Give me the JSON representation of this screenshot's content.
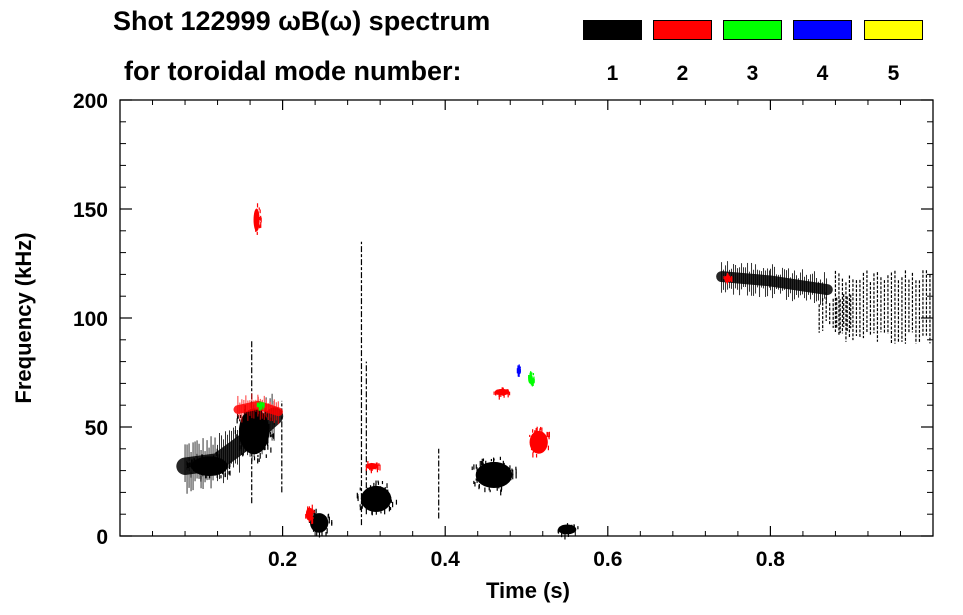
{
  "chart_data": {
    "type": "spectrogram",
    "title": "Shot 122999 ωB(ω) spectrum",
    "subtitle": "for toroidal mode number:",
    "xlabel": "Time (s)",
    "ylabel": "Frequency (kHz)",
    "xlim": [
      0.0,
      1.0
    ],
    "ylim": [
      0,
      200
    ],
    "x_ticks": [
      0.2,
      0.4,
      0.6,
      0.8
    ],
    "x_tick_labels": [
      "0.2",
      "0.4",
      "0.6",
      "0.8"
    ],
    "y_ticks": [
      0,
      50,
      100,
      150,
      200
    ],
    "y_tick_labels": [
      "0",
      "50",
      "100",
      "150",
      "200"
    ],
    "legend": [
      {
        "mode": "1",
        "color": "#000000"
      },
      {
        "mode": "2",
        "color": "#ff0000"
      },
      {
        "mode": "3",
        "color": "#00ff00"
      },
      {
        "mode": "4",
        "color": "#0000ff"
      },
      {
        "mode": "5",
        "color": "#ffff00"
      }
    ],
    "features": [
      {
        "mode": "1",
        "kind": "band",
        "t": [
          0.08,
          0.12,
          0.16,
          0.19
        ],
        "f": [
          32,
          34,
          45,
          55
        ],
        "width": 8
      },
      {
        "mode": "1",
        "kind": "blob",
        "t": 0.11,
        "f": 32,
        "rt": 0.03,
        "rf": 6
      },
      {
        "mode": "1",
        "kind": "blob",
        "t": 0.165,
        "f": 48,
        "rt": 0.025,
        "rf": 14
      },
      {
        "mode": "1",
        "kind": "blob",
        "t": 0.245,
        "f": 6,
        "rt": 0.015,
        "rf": 6
      },
      {
        "mode": "1",
        "kind": "blob",
        "t": 0.315,
        "f": 17,
        "rt": 0.025,
        "rf": 8
      },
      {
        "mode": "1",
        "kind": "blob",
        "t": 0.46,
        "f": 28,
        "rt": 0.03,
        "rf": 8
      },
      {
        "mode": "1",
        "kind": "blob",
        "t": 0.55,
        "f": 3,
        "rt": 0.015,
        "rf": 3
      },
      {
        "mode": "1",
        "kind": "vline",
        "t": 0.162,
        "f0": 15,
        "f1": 90
      },
      {
        "mode": "1",
        "kind": "vline",
        "t": 0.199,
        "f0": 20,
        "f1": 62
      },
      {
        "mode": "1",
        "kind": "vline",
        "t": 0.297,
        "f0": 5,
        "f1": 135
      },
      {
        "mode": "1",
        "kind": "vline",
        "t": 0.303,
        "f0": 10,
        "f1": 80
      },
      {
        "mode": "1",
        "kind": "vline",
        "t": 0.392,
        "f0": 8,
        "f1": 40
      },
      {
        "mode": "1",
        "kind": "band",
        "t": [
          0.74,
          0.8,
          0.87
        ],
        "f": [
          119,
          117,
          113
        ],
        "width": 5
      },
      {
        "mode": "1",
        "kind": "hatch",
        "t0": 0.88,
        "t1": 1.0,
        "f0": 88,
        "f1": 122
      },
      {
        "mode": "1",
        "kind": "hatch",
        "t0": 0.86,
        "t1": 0.9,
        "f0": 93,
        "f1": 112
      },
      {
        "mode": "2",
        "kind": "blob",
        "t": 0.168,
        "f": 145,
        "rt": 0.005,
        "rf": 7
      },
      {
        "mode": "2",
        "kind": "band",
        "t": [
          0.145,
          0.17,
          0.195
        ],
        "f": [
          58,
          60,
          57
        ],
        "width": 4
      },
      {
        "mode": "2",
        "kind": "blob",
        "t": 0.515,
        "f": 43,
        "rt": 0.015,
        "rf": 7
      },
      {
        "mode": "2",
        "kind": "blob",
        "t": 0.47,
        "f": 66,
        "rt": 0.012,
        "rf": 2
      },
      {
        "mode": "2",
        "kind": "blob",
        "t": 0.31,
        "f": 32,
        "rt": 0.01,
        "rf": 2
      },
      {
        "mode": "2",
        "kind": "blob",
        "t": 0.233,
        "f": 10,
        "rt": 0.006,
        "rf": 4
      },
      {
        "mode": "2",
        "kind": "blob",
        "t": 0.747,
        "f": 118,
        "rt": 0.005,
        "rf": 2
      },
      {
        "mode": "3",
        "kind": "blob",
        "t": 0.505,
        "f": 72,
        "rt": 0.004,
        "rf": 3
      },
      {
        "mode": "3",
        "kind": "blob",
        "t": 0.172,
        "f": 60,
        "rt": 0.005,
        "rf": 1
      },
      {
        "mode": "4",
        "kind": "blob",
        "t": 0.49,
        "f": 76,
        "rt": 0.002,
        "rf": 2
      }
    ]
  }
}
